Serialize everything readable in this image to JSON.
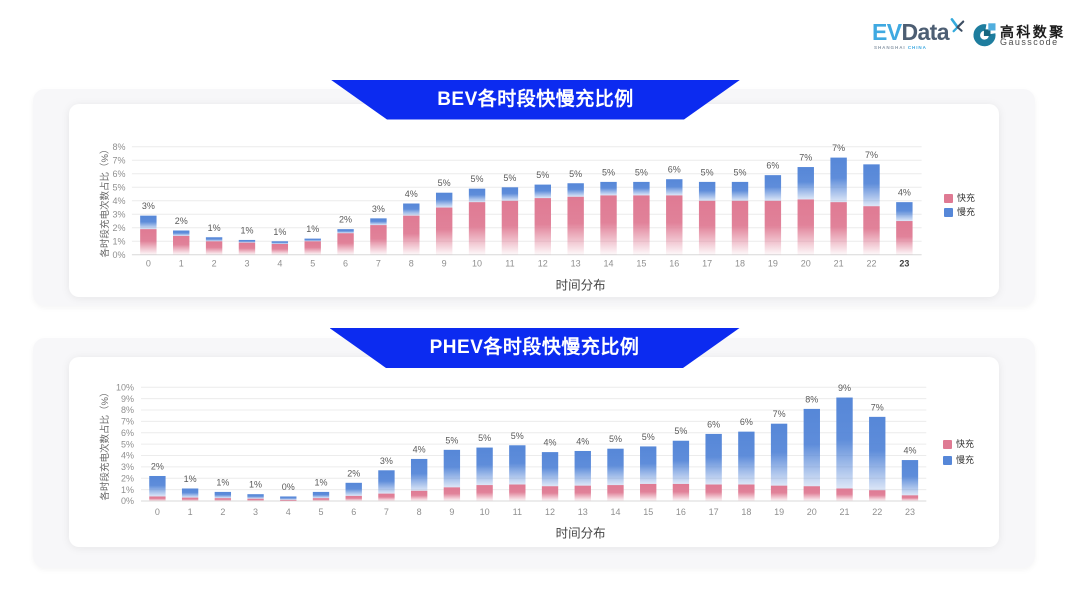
{
  "header": {
    "evdata": {
      "ev": "EV",
      "data": "Data",
      "sub_left": "SHANGHAI",
      "sub_right": "CHINA",
      "color_primary": "#3fa9e1",
      "color_secondary": "#4d5e73",
      "mark": "butterfly-x-icon"
    },
    "gausscode": {
      "cn": "高科数聚",
      "en": "Gausscode",
      "icon": "g-ring-icon",
      "color_icon": "#1e7d9e",
      "color_icon_dark": "#16667f",
      "color_icon_light": "#51aede"
    }
  },
  "colors": {
    "banner_blue": "#0c2bf0",
    "fast_pink": "#df7a93",
    "slow_blue": "#5687d8",
    "card_bg": "#f7f7f9",
    "gridline": "#ececec",
    "axis_line": "#d8d8d8"
  },
  "chart_data": [
    {
      "type": "bar",
      "stacked": true,
      "title": "BEV各时段快慢充比例",
      "xlabel": "时间分布",
      "ylabel": "各时段充电次数占比（%）",
      "ylim": [
        0,
        8
      ],
      "ytick_step": 1,
      "ytick_suffix": "%",
      "grid": true,
      "legend_position": "right",
      "categories": [
        "0",
        "1",
        "2",
        "3",
        "4",
        "5",
        "6",
        "7",
        "8",
        "9",
        "10",
        "11",
        "12",
        "13",
        "14",
        "15",
        "16",
        "17",
        "18",
        "19",
        "20",
        "21",
        "22",
        "23"
      ],
      "last_category_bold": true,
      "series": [
        {
          "name": "快充",
          "color": "#df7a93",
          "values": [
            1.9,
            1.4,
            1.0,
            0.9,
            0.8,
            1.0,
            1.6,
            2.2,
            2.9,
            3.5,
            3.9,
            4.0,
            4.2,
            4.3,
            4.4,
            4.4,
            4.4,
            4.0,
            4.0,
            4.0,
            4.1,
            3.9,
            3.6,
            2.5
          ]
        },
        {
          "name": "慢充",
          "color": "#5687d8",
          "values": [
            1.0,
            0.4,
            0.3,
            0.2,
            0.2,
            0.2,
            0.3,
            0.5,
            0.9,
            1.1,
            1.0,
            1.0,
            1.0,
            1.0,
            1.0,
            1.0,
            1.2,
            1.4,
            1.4,
            1.9,
            2.4,
            3.3,
            3.1,
            1.4
          ]
        }
      ],
      "total_labels": [
        "3%",
        "2%",
        "1%",
        "1%",
        "1%",
        "1%",
        "2%",
        "3%",
        "4%",
        "5%",
        "5%",
        "5%",
        "5%",
        "5%",
        "5%",
        "5%",
        "6%",
        "5%",
        "5%",
        "6%",
        "7%",
        "7%",
        "7%",
        "4%"
      ]
    },
    {
      "type": "bar",
      "stacked": true,
      "title": "PHEV各时段快慢充比例",
      "xlabel": "时间分布",
      "ylabel": "各时段充电次数占比（%）",
      "ylim": [
        0,
        10
      ],
      "ytick_step": 1,
      "ytick_suffix": "%",
      "grid": true,
      "legend_position": "right",
      "categories": [
        "0",
        "1",
        "2",
        "3",
        "4",
        "5",
        "6",
        "7",
        "8",
        "9",
        "10",
        "11",
        "12",
        "13",
        "14",
        "15",
        "16",
        "17",
        "18",
        "19",
        "20",
        "21",
        "22",
        "23"
      ],
      "last_category_bold": false,
      "series": [
        {
          "name": "快充",
          "color": "#df7a93",
          "values": [
            0.4,
            0.3,
            0.25,
            0.2,
            0.1,
            0.25,
            0.45,
            0.65,
            0.9,
            1.2,
            1.4,
            1.45,
            1.3,
            1.35,
            1.4,
            1.5,
            1.5,
            1.45,
            1.45,
            1.35,
            1.3,
            1.1,
            0.95,
            0.5
          ]
        },
        {
          "name": "慢充",
          "color": "#5687d8",
          "values": [
            1.8,
            0.8,
            0.55,
            0.4,
            0.3,
            0.55,
            1.15,
            2.05,
            2.8,
            3.3,
            3.3,
            3.45,
            3.0,
            3.05,
            3.2,
            3.3,
            3.8,
            4.45,
            4.65,
            5.45,
            6.8,
            8.0,
            6.45,
            3.1
          ]
        }
      ],
      "total_labels": [
        "2%",
        "1%",
        "1%",
        "1%",
        "0%",
        "1%",
        "2%",
        "3%",
        "4%",
        "5%",
        "5%",
        "5%",
        "4%",
        "4%",
        "5%",
        "5%",
        "5%",
        "6%",
        "6%",
        "7%",
        "8%",
        "9%",
        "7%",
        "4%"
      ]
    }
  ]
}
